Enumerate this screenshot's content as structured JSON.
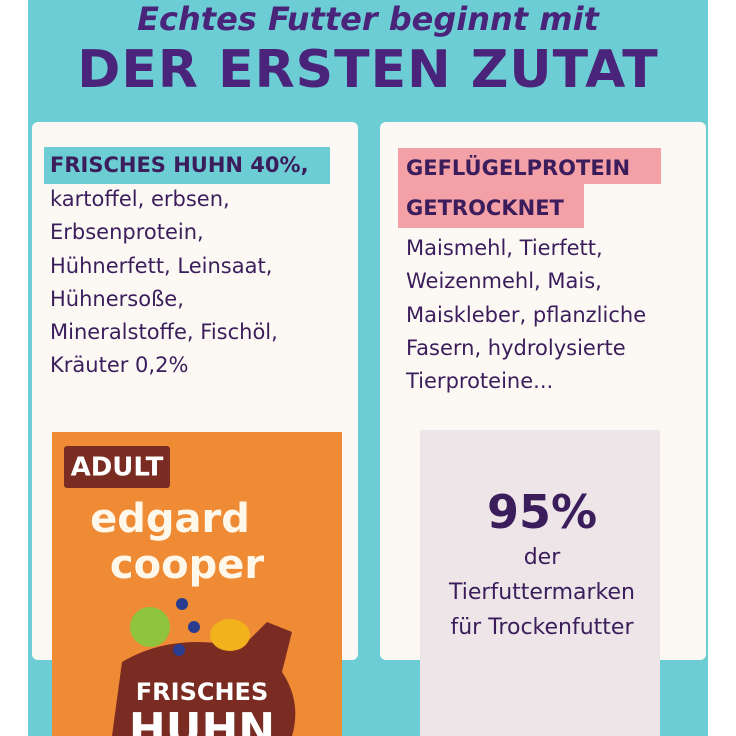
{
  "header": {
    "line1": "Echtes Futter beginnt mit",
    "line2": "DER ERSTEN ZUTAT"
  },
  "left": {
    "highlight": "FRISCHES HUHN 40%,",
    "lines": [
      "kartoffel, erbsen,",
      "Erbsenprotein,",
      "Hühnerfett, Leinsaat,",
      "Hühnersoße,",
      "Mineralstoffe, Fischöl,",
      "Kräuter 0,2%"
    ]
  },
  "right": {
    "highlight": [
      "GEFLÜGELPROTEIN",
      "GETROCKNET"
    ],
    "lines": [
      "Maismehl, Tierfett,",
      "Weizenmehl, Mais,",
      "Maiskleber, pflanzliche",
      "Fasern, hydrolysierte",
      "Tierproteine..."
    ],
    "stat": "95%",
    "stat_text": [
      "der",
      "Tierfuttermarken",
      "für Trockenfutter"
    ]
  },
  "product": {
    "badge": "ADULT",
    "brand": [
      "edgard",
      "cooper"
    ],
    "label": [
      "FRISCHES",
      "HUHN"
    ]
  }
}
